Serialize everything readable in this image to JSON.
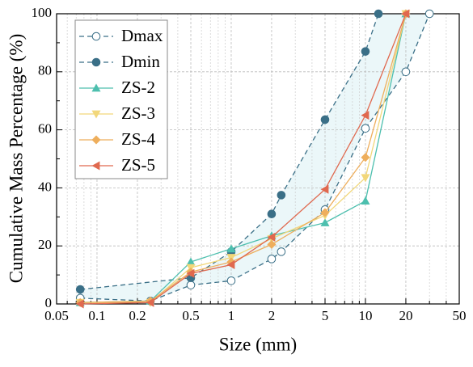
{
  "chart_data": {
    "type": "line",
    "x_label": "Size (mm)",
    "y_label": "Cumulative Mass Percentage (%)",
    "xscale": "log",
    "xlim": [
      0.05,
      50
    ],
    "xticks": [
      0.05,
      0.1,
      0.2,
      0.5,
      1,
      2,
      5,
      10,
      20,
      50
    ],
    "xminorticks": [
      0.06,
      0.07,
      0.08,
      0.09,
      0.3,
      0.4,
      0.6,
      0.7,
      0.8,
      0.9,
      3,
      4,
      6,
      7,
      8,
      9,
      30,
      40
    ],
    "ylim": [
      0,
      100
    ],
    "yticks": [
      0,
      20,
      40,
      60,
      80,
      100
    ],
    "yminorticks": [
      10,
      30,
      50,
      70,
      90
    ],
    "grid": true,
    "legend": "upper left",
    "series": [
      {
        "name": "Dmax",
        "color": "#3a6f87",
        "marker": "open-circle",
        "dashed": true,
        "x": [
          0.075,
          0.25,
          0.5,
          1,
          2,
          2.36,
          5,
          10,
          20,
          30
        ],
        "values": [
          2,
          1,
          6.5,
          8,
          15.5,
          18,
          32.5,
          60.5,
          80,
          100
        ]
      },
      {
        "name": "Dmin",
        "color": "#3a6f87",
        "marker": "circle",
        "dashed": true,
        "x": [
          0.075,
          0.5,
          1,
          2,
          2.36,
          5,
          10,
          12.5
        ],
        "values": [
          5,
          9,
          18,
          31,
          37.5,
          63.5,
          87,
          100
        ]
      },
      {
        "name": "ZS-2",
        "color": "#4dbfae",
        "marker": "triangle-up",
        "x": [
          0.075,
          0.25,
          0.5,
          1,
          2,
          5,
          10,
          20
        ],
        "values": [
          0.5,
          1,
          14.5,
          19,
          23.5,
          28,
          35.5,
          100
        ]
      },
      {
        "name": "ZS-3",
        "color": "#f2d77a",
        "marker": "triangle-down",
        "x": [
          0.075,
          0.25,
          0.5,
          1,
          2,
          5,
          10,
          20
        ],
        "values": [
          0.5,
          0.5,
          12.5,
          16,
          22.5,
          30.5,
          43.5,
          100
        ]
      },
      {
        "name": "ZS-4",
        "color": "#eeae5c",
        "marker": "diamond",
        "x": [
          0.075,
          0.25,
          0.5,
          1,
          2,
          5,
          10,
          20
        ],
        "values": [
          0.5,
          1,
          11,
          14.5,
          20.5,
          31.5,
          50.5,
          100
        ]
      },
      {
        "name": "ZS-5",
        "color": "#e0694f",
        "marker": "triangle-left",
        "x": [
          0.075,
          0.25,
          0.5,
          1,
          2,
          5,
          10,
          20
        ],
        "values": [
          0,
          0.5,
          10.5,
          13.5,
          23,
          39.5,
          65,
          100
        ]
      }
    ]
  }
}
